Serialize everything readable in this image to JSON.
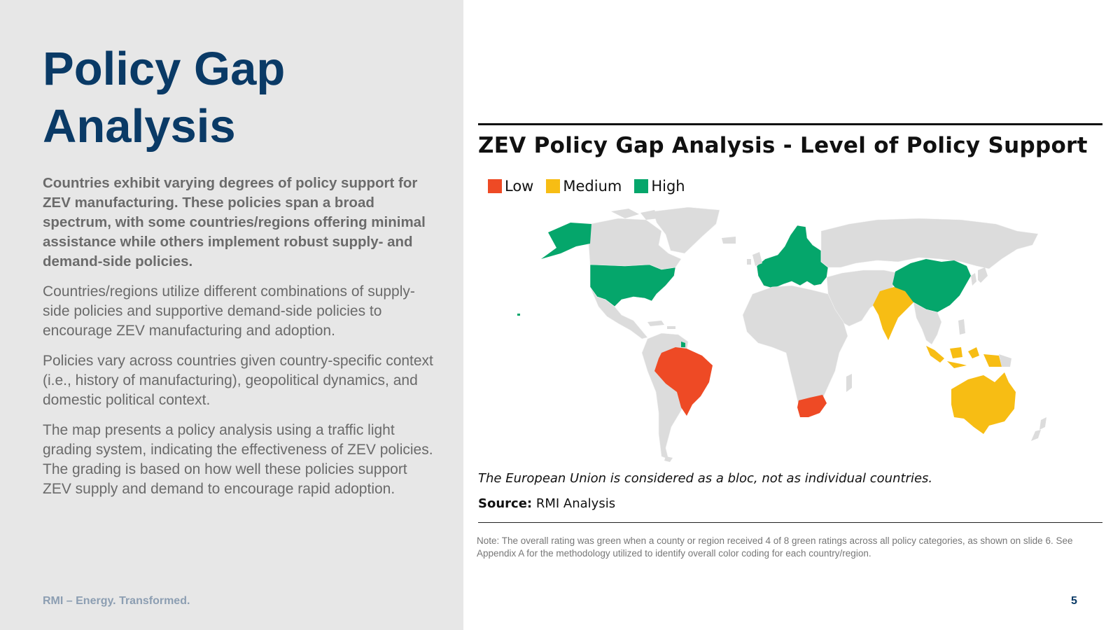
{
  "slide": {
    "title_line1": "Policy Gap",
    "title_line2": "Analysis",
    "paragraphs": [
      "Countries exhibit varying degrees of policy support for ZEV manufacturing. These policies span a broad spectrum, with some countries/regions offering minimal assistance while others implement robust supply- and demand-side policies.",
      "Countries/regions utilize different combinations of supply-side policies and supportive demand-side policies to encourage ZEV manufacturing and adoption.",
      "Policies vary across countries given country-specific context (i.e., history of manufacturing), geopolitical dynamics, and domestic political context.",
      "The map presents a policy analysis using a traffic light grading system, indicating the effectiveness of ZEV policies. The grading is based on how well these policies support ZEV supply and demand to encourage rapid adoption."
    ],
    "footer": "RMI – Energy. Transformed.",
    "page_number": "5"
  },
  "map": {
    "title": "ZEV Policy Gap Analysis - Level of Policy Support",
    "legend": [
      {
        "label": "Low",
        "color": "#ee4a25"
      },
      {
        "label": "Medium",
        "color": "#f7bd14"
      },
      {
        "label": "High",
        "color": "#05a66b"
      }
    ],
    "base_color": "#dcdcdc",
    "regions": [
      {
        "name": "United States",
        "level": "High"
      },
      {
        "name": "European Union",
        "level": "High"
      },
      {
        "name": "China",
        "level": "High"
      },
      {
        "name": "India",
        "level": "Medium"
      },
      {
        "name": "Indonesia",
        "level": "Medium"
      },
      {
        "name": "Australia",
        "level": "Medium"
      },
      {
        "name": "Brazil",
        "level": "Low"
      },
      {
        "name": "South Africa",
        "level": "Low"
      }
    ],
    "eu_note": "The European Union is considered as a bloc, not as individual countries.",
    "source_label": "Source:",
    "source_value": "RMI Analysis",
    "note": "Note: The overall rating was green when a county or region received 4 of 8 green ratings across all policy categories, as shown on slide 6. See Appendix A for the methodology utilized to identify overall color coding for each country/region."
  }
}
